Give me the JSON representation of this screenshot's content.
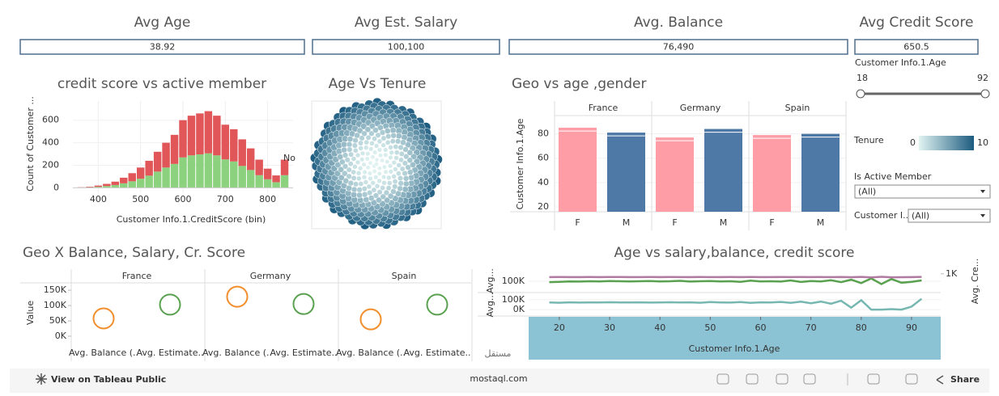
{
  "kpis": [
    {
      "title": "Avg Age",
      "value": "38.92"
    },
    {
      "title": "Avg Est. Salary",
      "value": "100,100"
    },
    {
      "title": "Avg. Balance",
      "value": "76,490"
    },
    {
      "title": "Avg Credit Score",
      "value": "650.5"
    }
  ],
  "histogram": {
    "type": "bar",
    "title": "credit score vs active member",
    "y_label": "Count of Customer ...",
    "x_label": "Customer Info.1.CreditScore (bin)",
    "bins": [
      350,
      370,
      390,
      410,
      430,
      450,
      470,
      490,
      510,
      530,
      550,
      570,
      590,
      610,
      630,
      650,
      670,
      690,
      710,
      730,
      750,
      770,
      790,
      810,
      830,
      850
    ],
    "series": [
      {
        "color": "#8cd17d",
        "values": [
          2,
          5,
          9,
          16,
          25,
          40,
          58,
          81,
          108,
          144,
          180,
          212,
          270,
          288,
          297,
          306,
          288,
          252,
          234,
          194,
          158,
          112,
          76,
          50,
          112
        ]
      },
      {
        "color": "#e15759",
        "values": [
          3,
          5,
          11,
          19,
          30,
          50,
          72,
          99,
          132,
          176,
          220,
          258,
          330,
          352,
          363,
          374,
          352,
          308,
          286,
          236,
          192,
          138,
          94,
          60,
          138
        ]
      }
    ],
    "xlim": [
      340,
      860
    ],
    "xticks": [
      400,
      500,
      600,
      700,
      800
    ],
    "ylim": [
      -40,
      770
    ],
    "yticks": [
      0,
      200,
      400,
      600
    ],
    "annotation": "No"
  },
  "bubble": {
    "title": "Age Vs Tenure"
  },
  "geo_age": {
    "type": "bar",
    "title": "Geo vs age ,gender",
    "y_label": "Customer Info.1.Age",
    "colors": [
      "#ff9da7",
      "#4e79a7"
    ],
    "groups": [
      {
        "name": "France",
        "categories": [
          "F",
          "M"
        ],
        "values": [
          85,
          81
        ]
      },
      {
        "name": "Germany",
        "categories": [
          "F",
          "M"
        ],
        "values": [
          77,
          84
        ]
      },
      {
        "name": "Spain",
        "categories": [
          "F",
          "M"
        ],
        "values": [
          79,
          80
        ]
      }
    ],
    "ylim": [
      16,
      95
    ],
    "yticks": [
      20,
      40,
      60,
      80
    ]
  },
  "filters": {
    "age": {
      "label": "Customer Info.1.Age",
      "min": 18,
      "max": 92
    },
    "tenure": {
      "label": "Tenure",
      "min": 0,
      "max": 10
    },
    "active": {
      "label": "Is Active Member",
      "value": "(All)"
    },
    "customer": {
      "label": "Customer I...",
      "value": "(All)"
    }
  },
  "geo_balance": {
    "type": "scatter",
    "title": "Geo X Balance, Salary, Cr. Score",
    "y_label": "Value",
    "colors": [
      "#f28e2b",
      "#59a14f"
    ],
    "panels": [
      {
        "name": "France",
        "categories": [
          "Avg. Balance (..",
          "Avg. Estimate.."
        ],
        "values": [
          58000,
          103000
        ]
      },
      {
        "name": "Germany",
        "categories": [
          "Avg. Balance (..",
          "Avg. Estimate.."
        ],
        "values": [
          129000,
          105000
        ]
      },
      {
        "name": "Spain",
        "categories": [
          "Avg. Balance (..",
          "Avg. Estimate.."
        ],
        "values": [
          55000,
          103000
        ]
      }
    ],
    "ylim": [
      -23700,
      174000
    ],
    "yticks": [
      {
        "value": 0,
        "label": "0K"
      },
      {
        "value": 50000,
        "label": "50K"
      },
      {
        "value": 100000,
        "label": "100K"
      },
      {
        "value": 150000,
        "label": "150K"
      }
    ]
  },
  "age_lines": {
    "type": "line",
    "title": "Age vs salary,balance, credit score",
    "x_label": "Customer Info.1.Age",
    "x": [
      18,
      20,
      22,
      24,
      26,
      28,
      30,
      32,
      34,
      36,
      38,
      40,
      42,
      44,
      46,
      48,
      50,
      52,
      54,
      56,
      58,
      60,
      62,
      64,
      66,
      68,
      70,
      72,
      74,
      76,
      78,
      80,
      82,
      84,
      86,
      88,
      90,
      92
    ],
    "xlim": [
      13.9,
      95.8
    ],
    "xticks": [
      20,
      30,
      40,
      50,
      60,
      70,
      80,
      90
    ],
    "panels": [
      {
        "y_label": "Avg...",
        "ylim": [
          40000,
          164000
        ],
        "yticks": [
          {
            "value": 100000,
            "label": "100K"
          }
        ],
        "y2_label": "Avg. Cre...",
        "y2lim": [
          -1000,
          1500
        ],
        "y2ticks": [
          {
            "value": 1000,
            "label": "1K"
          }
        ],
        "series": [
          {
            "color": "#59a14f",
            "values": [
              95000,
              97000,
              99000,
              98000,
              100000,
              99000,
              101000,
              100000,
              99000,
              100000,
              101000,
              99000,
              100000,
              102000,
              98000,
              100000,
              101000,
              99000,
              100000,
              97000,
              103000,
              99000,
              100000,
              98000,
              104000,
              96000,
              101000,
              99000,
              105000,
              95000,
              108000,
              90000,
              115000,
              85000,
              112000,
              92000,
              97000,
              104000
            ]
          },
          {
            "color": "#b07aa1",
            "axis": "y2",
            "values": [
              648,
              652,
              650,
              649,
              651,
              650,
              652,
              651,
              650,
              649,
              651,
              650,
              652,
              648,
              650,
              651,
              649,
              650,
              652,
              647,
              653,
              650,
              648,
              652,
              646,
              655,
              649,
              651,
              645,
              660,
              640,
              670,
              620,
              680,
              630,
              640,
              650,
              670
            ]
          }
        ]
      },
      {
        "y_label": "Avg...",
        "ylim": [
          -65000,
          165000
        ],
        "yticks": [
          {
            "value": 0,
            "label": "0K"
          },
          {
            "value": 100000,
            "label": "100K"
          }
        ],
        "series": [
          {
            "color": "#76b7b2",
            "values": [
              72000,
              70000,
              74000,
              71000,
              73000,
              72000,
              75000,
              73000,
              72000,
              74000,
              71000,
              73000,
              75000,
              72000,
              74000,
              70000,
              76000,
              73000,
              71000,
              77000,
              69000,
              74000,
              72000,
              78000,
              68000,
              80000,
              65000,
              82000,
              60000,
              90000,
              20000,
              95000,
              0,
              0,
              5000,
              0,
              30000,
              110000
            ]
          }
        ]
      }
    ]
  },
  "toolbar": {
    "view": "View on Tableau Public",
    "share": "Share"
  },
  "watermark": {
    "arabic": "مستقل",
    "latin": "mostaql.com"
  }
}
